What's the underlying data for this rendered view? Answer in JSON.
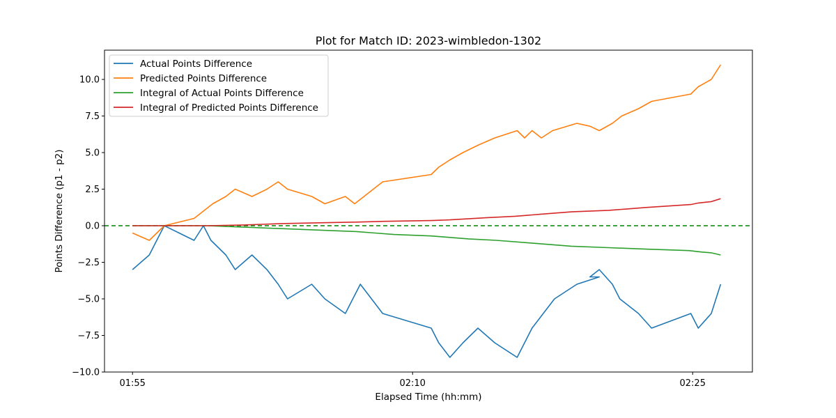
{
  "chart_data": {
    "type": "line",
    "title": "Plot for Match ID: 2023-wimbledon-1302",
    "xlabel": "Elapsed Time (hh:mm)",
    "ylabel": "Points Difference (p1 - p2)",
    "x_ticks": [
      {
        "label": "01:55",
        "minutes": 0
      },
      {
        "label": "02:10",
        "minutes": 15
      },
      {
        "label": "02:25",
        "minutes": 30
      }
    ],
    "xlim": [
      -1.5,
      33.2
    ],
    "ylim": [
      -10.0,
      12.0
    ],
    "y_ticks": [
      {
        "label": "−10.0",
        "value": -10.0
      },
      {
        "label": "−7.5",
        "value": -7.5
      },
      {
        "label": "−5.0",
        "value": -5.0
      },
      {
        "label": "−2.5",
        "value": -2.5
      },
      {
        "label": "0.0",
        "value": 0.0
      },
      {
        "label": "2.5",
        "value": 2.5
      },
      {
        "label": "5.0",
        "value": 5.0
      },
      {
        "label": "7.5",
        "value": 7.5
      },
      {
        "label": "10.0",
        "value": 10.0
      }
    ],
    "reference_line": {
      "value": 0,
      "color": "#008000",
      "style": "dashed"
    },
    "legend_position": "upper-left",
    "series": [
      {
        "name": "Actual Points Difference",
        "color": "#1f77b4",
        "points": [
          [
            0.0,
            -3
          ],
          [
            0.9,
            -2
          ],
          [
            1.3,
            -1
          ],
          [
            1.7,
            0
          ],
          [
            3.3,
            -1
          ],
          [
            3.8,
            0
          ],
          [
            4.2,
            -1
          ],
          [
            5.0,
            -2
          ],
          [
            5.5,
            -3
          ],
          [
            6.4,
            -2
          ],
          [
            7.2,
            -3
          ],
          [
            7.8,
            -4
          ],
          [
            8.3,
            -5
          ],
          [
            9.6,
            -4
          ],
          [
            10.3,
            -5
          ],
          [
            11.4,
            -6
          ],
          [
            12.2,
            -4
          ],
          [
            12.8,
            -5
          ],
          [
            13.4,
            -6
          ],
          [
            16.0,
            -7
          ],
          [
            16.4,
            -8
          ],
          [
            17.0,
            -9
          ],
          [
            17.7,
            -8
          ],
          [
            18.5,
            -7
          ],
          [
            19.4,
            -8
          ],
          [
            20.6,
            -9
          ],
          [
            21.4,
            -7
          ],
          [
            22.0,
            -6
          ],
          [
            22.6,
            -5
          ],
          [
            23.8,
            -4
          ],
          [
            25.0,
            -3.5
          ],
          [
            24.5,
            -3.5
          ],
          [
            25.0,
            -3
          ],
          [
            25.7,
            -4
          ],
          [
            26.1,
            -5
          ],
          [
            27.1,
            -6
          ],
          [
            27.8,
            -7
          ],
          [
            29.9,
            -6
          ],
          [
            30.3,
            -7
          ],
          [
            31.0,
            -6
          ],
          [
            31.5,
            -4
          ]
        ]
      },
      {
        "name": "Predicted Points Difference",
        "color": "#ff7f0e",
        "points": [
          [
            0.0,
            -0.5
          ],
          [
            0.9,
            -1
          ],
          [
            1.7,
            0
          ],
          [
            3.3,
            0.5
          ],
          [
            4.3,
            1.5
          ],
          [
            5.0,
            2
          ],
          [
            5.5,
            2.5
          ],
          [
            6.4,
            2
          ],
          [
            7.2,
            2.5
          ],
          [
            7.8,
            3
          ],
          [
            8.3,
            2.5
          ],
          [
            9.6,
            2
          ],
          [
            10.3,
            1.5
          ],
          [
            11.4,
            2
          ],
          [
            11.9,
            1.5
          ],
          [
            12.4,
            2
          ],
          [
            13.4,
            3
          ],
          [
            16.0,
            3.5
          ],
          [
            16.4,
            4
          ],
          [
            17.0,
            4.5
          ],
          [
            17.7,
            5
          ],
          [
            18.5,
            5.5
          ],
          [
            19.4,
            6
          ],
          [
            20.6,
            6.5
          ],
          [
            21.0,
            6
          ],
          [
            21.4,
            6.5
          ],
          [
            21.9,
            6
          ],
          [
            22.5,
            6.5
          ],
          [
            23.8,
            7
          ],
          [
            24.5,
            6.8
          ],
          [
            25.0,
            6.5
          ],
          [
            25.7,
            7
          ],
          [
            26.2,
            7.5
          ],
          [
            27.1,
            8
          ],
          [
            27.8,
            8.5
          ],
          [
            29.9,
            9
          ],
          [
            30.3,
            9.5
          ],
          [
            31.0,
            10
          ],
          [
            31.5,
            11
          ]
        ]
      },
      {
        "name": "Integral of Actual Points Difference",
        "color": "#2ca02c",
        "points": [
          [
            0.0,
            0
          ],
          [
            4.0,
            0
          ],
          [
            6.0,
            -0.1
          ],
          [
            8.0,
            -0.2
          ],
          [
            10.0,
            -0.3
          ],
          [
            12.0,
            -0.4
          ],
          [
            13.0,
            -0.5
          ],
          [
            14.0,
            -0.6
          ],
          [
            16.0,
            -0.7
          ],
          [
            17.0,
            -0.8
          ],
          [
            18.0,
            -0.9
          ],
          [
            19.5,
            -1.0
          ],
          [
            21.5,
            -1.2
          ],
          [
            22.5,
            -1.3
          ],
          [
            23.5,
            -1.4
          ],
          [
            25.5,
            -1.5
          ],
          [
            27.5,
            -1.6
          ],
          [
            29.8,
            -1.7
          ],
          [
            30.5,
            -1.8
          ],
          [
            31.0,
            -1.85
          ],
          [
            31.5,
            -2.0
          ]
        ]
      },
      {
        "name": "Integral of Predicted Points Difference",
        "color": "#d62728",
        "points": [
          [
            0.0,
            0
          ],
          [
            4.0,
            0
          ],
          [
            6.0,
            0.05
          ],
          [
            8.0,
            0.15
          ],
          [
            10.0,
            0.2
          ],
          [
            12.0,
            0.25
          ],
          [
            13.5,
            0.3
          ],
          [
            16.0,
            0.35
          ],
          [
            17.0,
            0.4
          ],
          [
            19.0,
            0.55
          ],
          [
            20.5,
            0.65
          ],
          [
            22.0,
            0.8
          ],
          [
            23.5,
            0.95
          ],
          [
            25.5,
            1.05
          ],
          [
            26.5,
            1.15
          ],
          [
            27.5,
            1.25
          ],
          [
            29.9,
            1.45
          ],
          [
            30.3,
            1.55
          ],
          [
            31.0,
            1.65
          ],
          [
            31.5,
            1.85
          ]
        ]
      }
    ]
  }
}
